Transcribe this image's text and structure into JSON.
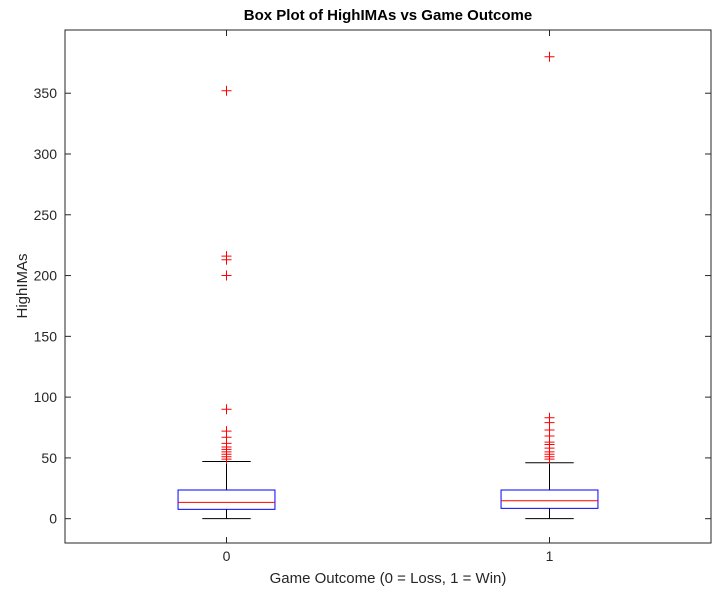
{
  "chart_data": {
    "type": "boxplot",
    "title": "Box Plot of HighIMAs vs Game Outcome",
    "xlabel": "Game Outcome (0 = Loss, 1 = Win)",
    "ylabel": "HighIMAs",
    "categories": [
      "0",
      "1"
    ],
    "xlim": [
      -0.5,
      1.5
    ],
    "ylim": [
      -20,
      402
    ],
    "yticks": [
      0,
      50,
      100,
      150,
      200,
      250,
      300,
      350
    ],
    "grid": false,
    "colors": {
      "box": "#0000ff",
      "median": "#ff0000",
      "whisker": "#000000",
      "outlier": "#ff0000"
    },
    "series": [
      {
        "name": "0",
        "whisker_low": 0,
        "q1": 7.7,
        "median": 13.4,
        "q3": 23.6,
        "whisker_high": 47,
        "outliers": [
          352,
          216,
          213,
          200,
          90,
          72,
          67,
          62,
          59,
          57,
          55,
          53,
          51,
          49
        ]
      },
      {
        "name": "1",
        "whisker_low": 0,
        "q1": 8.5,
        "median": 14.8,
        "q3": 23.6,
        "whisker_high": 46,
        "outliers": [
          380,
          83,
          79,
          73,
          68,
          63,
          61,
          58,
          55,
          53,
          51,
          49
        ]
      }
    ]
  }
}
